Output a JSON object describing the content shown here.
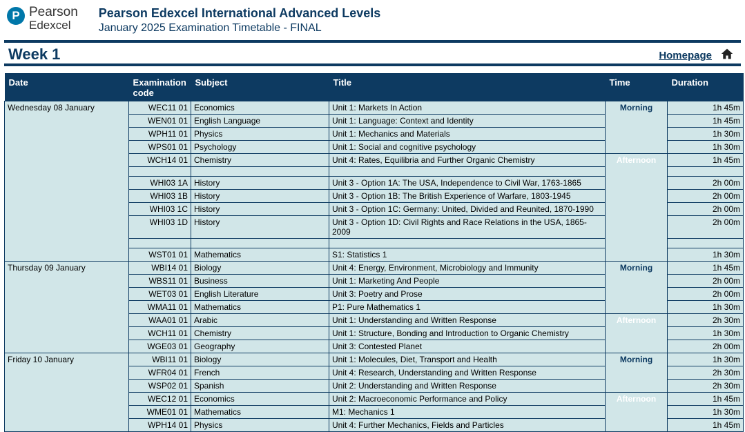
{
  "brand": {
    "pearson": "Pearson",
    "edexcel": "Edexcel",
    "p": "P"
  },
  "header": {
    "main": "Pearson Edexcel International Advanced Levels",
    "sub": "January 2025 Examination Timetable - FINAL"
  },
  "week": "Week 1",
  "homepage": "Homepage",
  "columns": {
    "date": "Date",
    "code": "Examination code",
    "subject": "Subject",
    "title": "Title",
    "time": "Time",
    "duration": "Duration"
  },
  "sessions": {
    "morning": "Morning",
    "afternoon": "Afternoon"
  },
  "colors": {
    "navy": "#0d3a61",
    "teal": "#0d6684",
    "lime": "#c0cf35",
    "cell": "#d1e6e8",
    "logo": "#0077a9"
  },
  "days": [
    {
      "date": "Wednesday 08 January",
      "blocks": [
        {
          "type": "rows",
          "session": "morning",
          "rows": [
            {
              "code": "WEC11 01",
              "subject": "Economics",
              "title": "Unit 1: Markets In Action",
              "duration": "1h 45m"
            },
            {
              "code": "WEN01 01",
              "subject": "English Language",
              "title": "Unit 1: Language: Context and Identity",
              "duration": "1h 45m"
            },
            {
              "code": "WPH11 01",
              "subject": "Physics",
              "title": "Unit 1: Mechanics and Materials",
              "duration": "1h 30m"
            },
            {
              "code": "WPS01 01",
              "subject": "Psychology",
              "title": "Unit 1: Social and cognitive psychology",
              "duration": "1h 30m"
            }
          ]
        },
        {
          "type": "rows",
          "session": "afternoon",
          "rows": [
            {
              "code": "WCH14 01",
              "subject": "Chemistry",
              "title": "Unit 4: Rates, Equilibria and Further Organic Chemistry",
              "duration": "1h 45m"
            }
          ]
        },
        {
          "type": "spacer"
        },
        {
          "type": "rows",
          "session": "afternoon-cont",
          "rows": [
            {
              "code": "WHI03 1A",
              "subject": "History",
              "title": "Unit 3 - Option 1A: The USA, Independence to Civil War, 1763-1865",
              "duration": "2h 00m"
            },
            {
              "code": "WHI03 1B",
              "subject": "History",
              "title": "Unit 3 - Option 1B: The British Experience of Warfare, 1803-1945",
              "duration": "2h 00m"
            },
            {
              "code": "WHI03 1C",
              "subject": "History",
              "title": "Unit 3 - Option 1C: Germany: United, Divided and Reunited, 1870-1990",
              "duration": "2h 00m"
            },
            {
              "code": "WHI03 1D",
              "subject": "History",
              "title": "Unit 3 - Option 1D: Civil Rights and Race Relations in the USA, 1865-2009",
              "duration": "2h 00m"
            }
          ]
        },
        {
          "type": "spacer"
        },
        {
          "type": "rows",
          "session": "afternoon-cont",
          "rows": [
            {
              "code": "WST01 01",
              "subject": "Mathematics",
              "title": "S1: Statistics 1",
              "duration": "1h 30m"
            }
          ]
        }
      ]
    },
    {
      "date": "Thursday 09 January",
      "blocks": [
        {
          "type": "rows",
          "session": "morning",
          "rows": [
            {
              "code": "WBI14 01",
              "subject": "Biology",
              "title": "Unit 4: Energy, Environment, Microbiology and Immunity",
              "duration": "1h 45m"
            },
            {
              "code": "WBS11 01",
              "subject": "Business",
              "title": "Unit 1: Marketing And People",
              "duration": "2h 00m"
            },
            {
              "code": "WET03 01",
              "subject": "English Literature",
              "title": "Unit 3: Poetry and Prose",
              "duration": "2h 00m"
            },
            {
              "code": "WMA11 01",
              "subject": "Mathematics",
              "title": "P1: Pure Mathematics 1",
              "duration": "1h 30m"
            }
          ]
        },
        {
          "type": "rows",
          "session": "afternoon",
          "rows": [
            {
              "code": "WAA01 01",
              "subject": "Arabic",
              "title": "Unit 1: Understanding and Written Response",
              "duration": "2h 30m"
            },
            {
              "code": "WCH11 01",
              "subject": "Chemistry",
              "title": "Unit 1: Structure, Bonding and Introduction to Organic Chemistry",
              "duration": "1h 30m"
            },
            {
              "code": "WGE03 01",
              "subject": "Geography",
              "title": "Unit 3: Contested Planet",
              "duration": "2h 00m"
            }
          ]
        }
      ]
    },
    {
      "date": "Friday 10 January",
      "blocks": [
        {
          "type": "rows",
          "session": "morning",
          "rows": [
            {
              "code": "WBI11 01",
              "subject": "Biology",
              "title": "Unit 1: Molecules, Diet, Transport and Health",
              "duration": "1h 30m"
            },
            {
              "code": "WFR04 01",
              "subject": "French",
              "title": "Unit 4: Research, Understanding and Written Response",
              "duration": "2h 30m"
            },
            {
              "code": "WSP02 01",
              "subject": "Spanish",
              "title": "Unit 2: Understanding and Written Response",
              "duration": "2h 30m"
            }
          ]
        },
        {
          "type": "rows",
          "session": "afternoon",
          "rows": [
            {
              "code": "WEC12 01",
              "subject": "Economics",
              "title": "Unit 2: Macroeconomic Performance and Policy",
              "duration": "1h 45m"
            },
            {
              "code": "WME01 01",
              "subject": "Mathematics",
              "title": "M1: Mechanics 1",
              "duration": "1h 30m"
            },
            {
              "code": "WPH14 01",
              "subject": "Physics",
              "title": "Unit 4: Further Mechanics, Fields and Particles",
              "duration": "1h 45m"
            }
          ]
        }
      ]
    }
  ]
}
